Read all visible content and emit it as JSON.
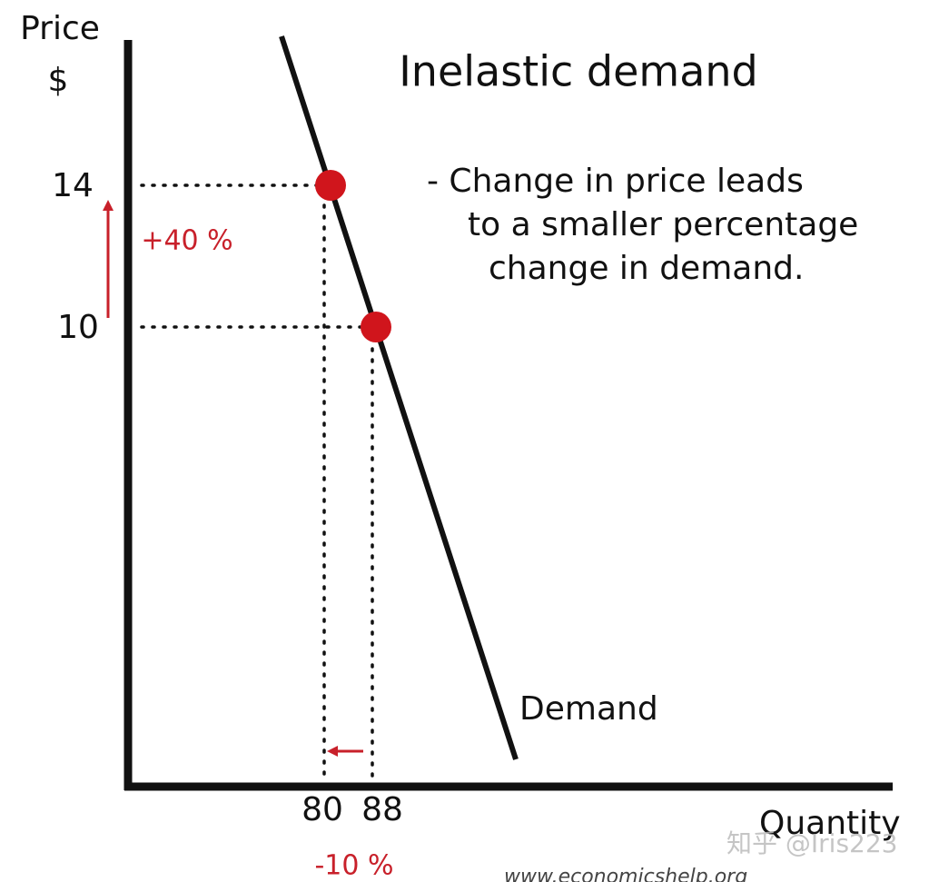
{
  "title": "Inelastic demand",
  "axes": {
    "y_label": "Price",
    "y_unit": "$",
    "x_label": "Quantity"
  },
  "y_ticks": [
    14,
    10
  ],
  "x_ticks": [
    80,
    88
  ],
  "price_change": "+40 %",
  "quantity_change": "-10 %",
  "note": [
    "- Change in price leads",
    "to a smaller percentage",
    "change in demand."
  ],
  "curve_label": "Demand",
  "watermark": "知乎 @Iris223",
  "source": "www.economicshelp.org"
}
